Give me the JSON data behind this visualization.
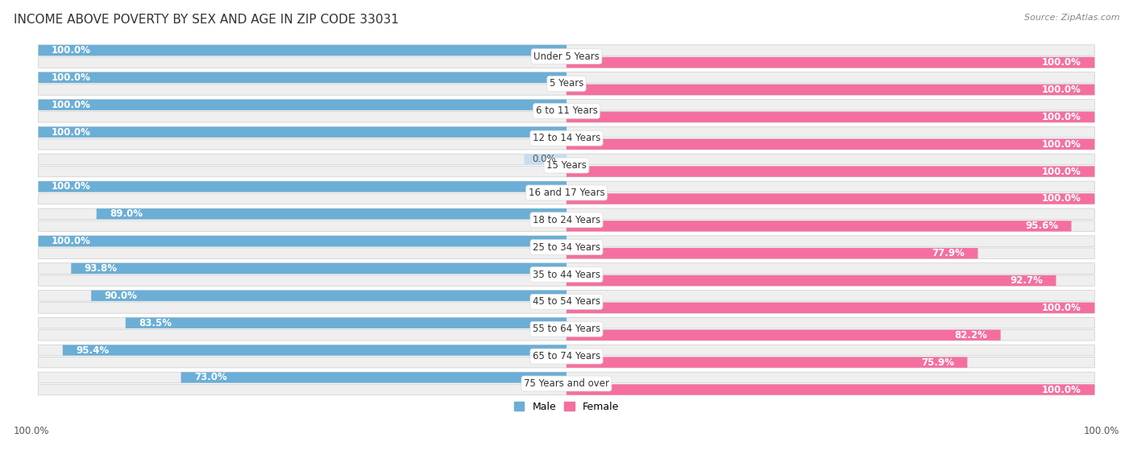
{
  "title": "INCOME ABOVE POVERTY BY SEX AND AGE IN ZIP CODE 33031",
  "source": "Source: ZipAtlas.com",
  "categories": [
    "Under 5 Years",
    "5 Years",
    "6 to 11 Years",
    "12 to 14 Years",
    "15 Years",
    "16 and 17 Years",
    "18 to 24 Years",
    "25 to 34 Years",
    "35 to 44 Years",
    "45 to 54 Years",
    "55 to 64 Years",
    "65 to 74 Years",
    "75 Years and over"
  ],
  "male_values": [
    100.0,
    100.0,
    100.0,
    100.0,
    0.0,
    100.0,
    89.0,
    100.0,
    93.8,
    90.0,
    83.5,
    95.4,
    73.0
  ],
  "female_values": [
    100.0,
    100.0,
    100.0,
    100.0,
    100.0,
    100.0,
    95.6,
    77.9,
    92.7,
    100.0,
    82.2,
    75.9,
    100.0
  ],
  "male_color": "#6BAED6",
  "female_color": "#F46FA0",
  "male_color_light": "#C8DCF0",
  "female_color_light": "#FAC8D8",
  "male_label": "Male",
  "female_label": "Female",
  "title_fontsize": 11,
  "label_fontsize": 8.5,
  "value_fontsize": 8.5,
  "source_fontsize": 8,
  "bg_color": "#FFFFFF",
  "row_bg_color": "#EFEFEF",
  "x_axis_label_left": "100.0%",
  "x_axis_label_right": "100.0%"
}
